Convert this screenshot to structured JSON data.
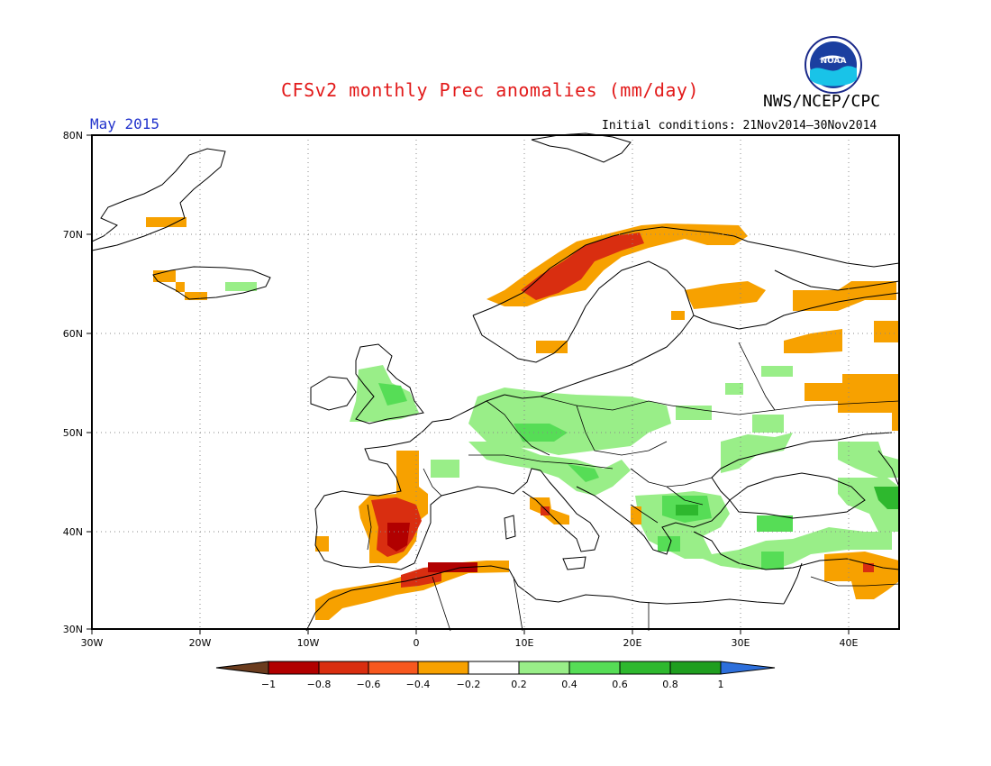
{
  "header": {
    "title": "CFSv2 monthly Prec anomalies (mm/day)",
    "agency": "NWS/NCEP/CPC",
    "logo_text": "NOAA",
    "month": "May 2015",
    "initial_conditions": "Initial conditions: 21Nov2014–30Nov2014"
  },
  "map": {
    "lat_ticks": [
      "80N",
      "70N",
      "60N",
      "50N",
      "40N",
      "30N"
    ],
    "lon_ticks": [
      "30W",
      "20W",
      "10W",
      "0",
      "10E",
      "20E",
      "30E",
      "40E"
    ]
  },
  "colorbar": {
    "labels": [
      "−1",
      "−0.8",
      "−0.6",
      "−0.4",
      "−0.2",
      "0.2",
      "0.4",
      "0.6",
      "0.8",
      "1"
    ],
    "colors": [
      "#6b3c1e",
      "#b10000",
      "#d92e10",
      "#f7581f",
      "#f7a100",
      "#ffffff",
      "#99ee88",
      "#56dd56",
      "#2eb82e",
      "#1f9e1f",
      "#2d6fdb"
    ]
  },
  "anomaly_regions": [
    {
      "name": "Norway coast",
      "value": "-0.6",
      "color": "#d92e10"
    },
    {
      "name": "Iberia",
      "value": "-0.8",
      "color": "#b10000"
    },
    {
      "name": "Southern France",
      "value": "-0.4",
      "color": "#f7a100"
    },
    {
      "name": "North Africa",
      "value": "-0.4",
      "color": "#f7a100"
    },
    {
      "name": "Western Russia",
      "value": "-0.4",
      "color": "#f7a100"
    },
    {
      "name": "Central Europe",
      "value": "0.2",
      "color": "#99ee88"
    },
    {
      "name": "Balkans",
      "value": "0.6",
      "color": "#56dd56"
    },
    {
      "name": "Turkey",
      "value": "0.4",
      "color": "#56dd56"
    },
    {
      "name": "British Isles",
      "value": "0.4",
      "color": "#56dd56"
    }
  ]
}
